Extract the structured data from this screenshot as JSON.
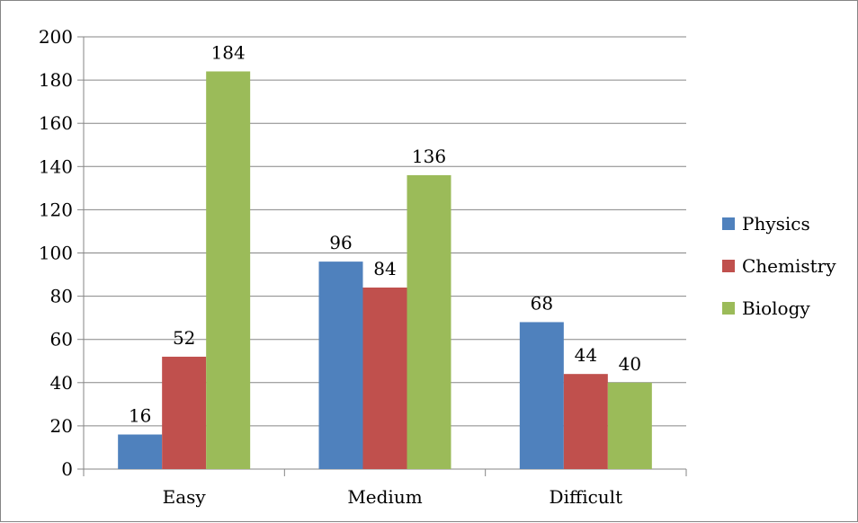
{
  "chart_data": {
    "type": "bar",
    "title": "",
    "xlabel": "",
    "ylabel": "",
    "categories": [
      "Easy",
      "Medium",
      "Difficult"
    ],
    "series": [
      {
        "name": "Physics",
        "values": [
          16,
          96,
          68
        ],
        "color": "#4F81BD"
      },
      {
        "name": "Chemistry",
        "values": [
          52,
          84,
          44
        ],
        "color": "#C0504D"
      },
      {
        "name": "Biology",
        "values": [
          184,
          136,
          40
        ],
        "color": "#9BBB59"
      }
    ],
    "ylim": [
      0,
      200
    ],
    "yticks": [
      0,
      20,
      40,
      60,
      80,
      100,
      120,
      140,
      160,
      180,
      200
    ],
    "grid": true,
    "legend_position": "right",
    "data_labels": true
  }
}
